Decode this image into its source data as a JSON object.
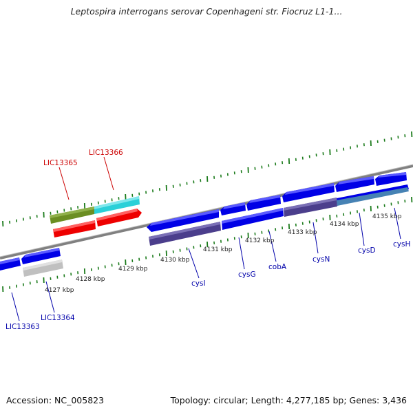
{
  "title": "Leptospira interrogans serovar Copenhageni str. Fiocruz L1-1...",
  "footer": {
    "accession": "Accession: NC_005823",
    "summary": "Topology: circular; Length: 4,277,185 bp; Genes: 3,436"
  },
  "colors": {
    "backbone": "#808080",
    "tick": "#1a7a1a",
    "forward_gene": "#0000e6",
    "reverse_gene": "#0000e6",
    "red_gene": "#ee0000",
    "olive": "#6b8e23",
    "cyan": "#2bd0d8",
    "pseudo": "#c0c0c0",
    "slate": "#4b3e8c",
    "steel": "#4682b4",
    "label_red": "#cc0000",
    "label_blue": "#0000aa"
  },
  "scale_labels": [
    "4127 kbp",
    "4128 kbp",
    "4129 kbp",
    "4130 kbp",
    "4131 kbp",
    "4132 kbp",
    "4133 kbp",
    "4134 kbp",
    "4135 kbp"
  ],
  "gene_labels": {
    "LIC13365": "LIC13365",
    "LIC13366": "LIC13366",
    "LIC13363": "LIC13363",
    "LIC13364": "LIC13364",
    "cysI": "cysI",
    "cysG": "cysG",
    "cobA": "cobA",
    "cysN": "cysN",
    "cysD": "cysD",
    "cysH": "cysH"
  }
}
